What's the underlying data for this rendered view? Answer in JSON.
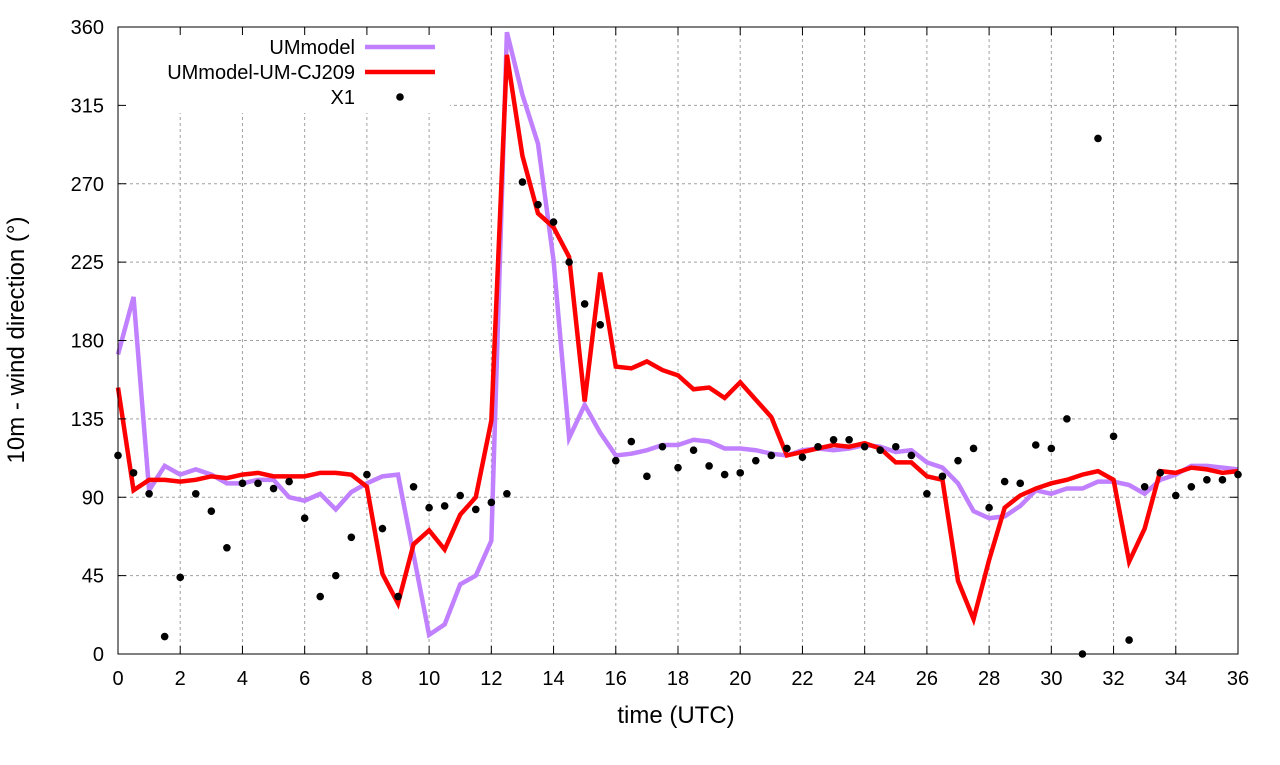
{
  "chart_data": {
    "type": "line",
    "title": "",
    "xlabel": "time (UTC)",
    "ylabel": "10m - wind direction (°)",
    "xlim": [
      0,
      36
    ],
    "ylim": [
      0,
      360
    ],
    "xticks": [
      "0",
      "2",
      "4",
      "6",
      "8",
      "10",
      "12",
      "14",
      "16",
      "18",
      "20",
      "22",
      "24",
      "26",
      "28",
      "30",
      "32",
      "34",
      "36"
    ],
    "yticks": [
      "0",
      "45",
      "90",
      "135",
      "180",
      "225",
      "270",
      "315",
      "360"
    ],
    "grid": true,
    "legend_position": "top-left",
    "x": [
      0,
      0.5,
      1,
      1.5,
      2,
      2.5,
      3,
      3.5,
      4,
      4.5,
      5,
      5.5,
      6,
      6.5,
      7,
      7.5,
      8,
      8.5,
      9,
      9.5,
      10,
      10.5,
      11,
      11.5,
      12,
      12.5,
      13,
      13.5,
      14,
      14.5,
      15,
      15.5,
      16,
      16.5,
      17,
      17.5,
      18,
      18.5,
      19,
      19.5,
      20,
      20.5,
      21,
      21.5,
      22,
      22.5,
      23,
      23.5,
      24,
      24.5,
      25,
      25.5,
      26,
      26.5,
      27,
      27.5,
      28,
      28.5,
      29,
      29.5,
      30,
      30.5,
      31,
      31.5,
      32,
      32.5,
      33,
      33.5,
      34,
      34.5,
      35,
      35.5,
      36
    ],
    "series": [
      {
        "name": "UMmodel",
        "style": "line",
        "color": "#c080ff",
        "values": [
          172,
          205,
          94,
          108,
          103,
          106,
          103,
          98,
          98,
          100,
          100,
          90,
          88,
          92,
          83,
          93,
          98,
          102,
          103,
          57,
          11,
          17,
          40,
          45,
          65,
          357,
          321,
          293,
          226,
          124,
          143,
          127,
          114,
          115,
          117,
          120,
          120,
          123,
          122,
          118,
          118,
          117,
          115,
          114,
          117,
          118,
          117,
          118,
          120,
          119,
          116,
          117,
          110,
          107,
          98,
          82,
          78,
          79,
          85,
          94,
          92,
          95,
          95,
          99,
          99,
          97,
          92,
          100,
          103,
          108,
          108,
          107,
          106
        ]
      },
      {
        "name": "UMmodel-UM-CJ209",
        "style": "line",
        "color": "#ff0000",
        "values": [
          153,
          94,
          100,
          100,
          99,
          100,
          102,
          101,
          103,
          104,
          102,
          102,
          102,
          104,
          104,
          103,
          96,
          46,
          29,
          63,
          71,
          60,
          80,
          90,
          134,
          344,
          286,
          253,
          245,
          228,
          145,
          219,
          165,
          164,
          168,
          163,
          160,
          152,
          153,
          147,
          156,
          146,
          136,
          114,
          116,
          118,
          120,
          119,
          121,
          118,
          110,
          110,
          102,
          100,
          42,
          20,
          54,
          84,
          91,
          95,
          98,
          100,
          103,
          105,
          100,
          53,
          72,
          105,
          104,
          107,
          106,
          104,
          105
        ]
      },
      {
        "name": "X1",
        "style": "points",
        "color": "#000000",
        "values": [
          114,
          104,
          92,
          10,
          44,
          92,
          82,
          61,
          98,
          98,
          95,
          99,
          78,
          33,
          45,
          67,
          103,
          72,
          33,
          96,
          84,
          85,
          91,
          83,
          87,
          92,
          271,
          258,
          248,
          225,
          201,
          189,
          111,
          122,
          102,
          119,
          107,
          117,
          108,
          103,
          104,
          111,
          114,
          118,
          113,
          119,
          123,
          123,
          119,
          117,
          119,
          114,
          92,
          102,
          111,
          118,
          84,
          99,
          98,
          120,
          118,
          135,
          0,
          296,
          125,
          8,
          96,
          104,
          91,
          96,
          100,
          100,
          103
        ]
      }
    ]
  }
}
